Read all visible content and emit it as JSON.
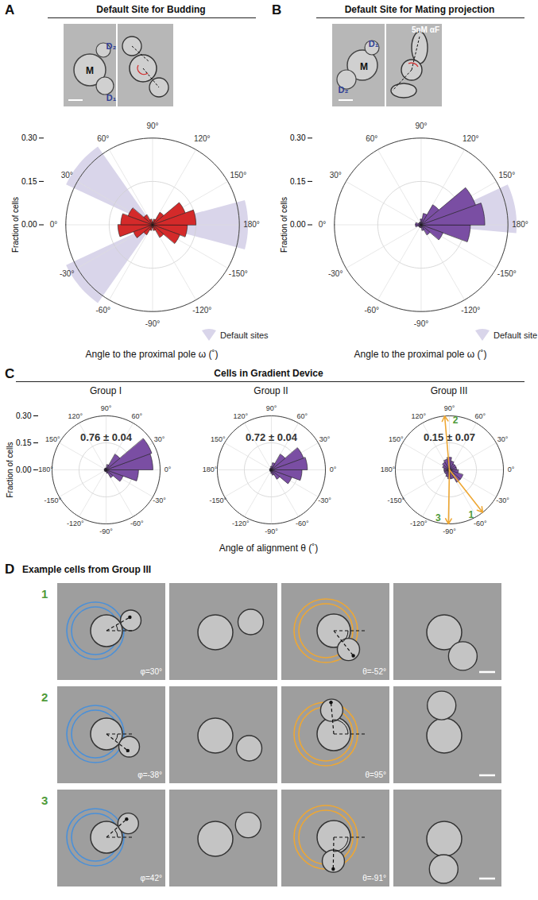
{
  "panels": {
    "A": {
      "letter": "A",
      "title": "Default Site for Budding",
      "image_labels": {
        "mother": "M",
        "daughters": [
          "D₁",
          "D₂"
        ]
      }
    },
    "B": {
      "letter": "B",
      "title": "Default Site for Mating projection",
      "image_labels": {
        "mother": "M",
        "daughters": [
          "D₁",
          "D₂"
        ]
      },
      "treatment": "5nM αF"
    },
    "C": {
      "letter": "C",
      "title": "Cells in Gradient Device",
      "xlabel": "Angle of alignment θ (˚)"
    },
    "D": {
      "letter": "D",
      "title": "Example cells from Group III",
      "examples": [
        {
          "label": "1",
          "phi": {
            "value": 30,
            "label": "φ=30°"
          },
          "theta": {
            "value": -52,
            "label": "θ=-52°"
          }
        },
        {
          "label": "2",
          "phi": {
            "value": -38,
            "label": "φ=-38°"
          },
          "theta": {
            "value": 95,
            "label": "θ=95°"
          }
        },
        {
          "label": "3",
          "phi": {
            "value": 42,
            "label": "φ=42°"
          },
          "theta": {
            "value": -91,
            "label": "θ=-91°"
          }
        }
      ]
    }
  },
  "chart_data": [
    {
      "type": "polar_bar",
      "xlabel": "Angle to the proximal pole ω (˚)",
      "ylabel": "Fraction of cells",
      "orientation": "clockwise",
      "color": "#d42a2a",
      "grid": true,
      "bins": [
        -180,
        -160,
        -140,
        -120,
        -100,
        -80,
        -60,
        -40,
        -20,
        0,
        20,
        40,
        60,
        80,
        100,
        120,
        140,
        160,
        180
      ],
      "values": [
        0.12,
        0.1,
        0.05,
        0.02,
        0.01,
        0.02,
        0.04,
        0.07,
        0.12,
        0.11,
        0.09,
        0.04,
        0.02,
        0.01,
        0.02,
        0.05,
        0.12,
        0.15
      ],
      "xlim": [
        -180,
        180
      ],
      "xticks": [
        {
          "value": 0,
          "label": "0°"
        },
        {
          "value": 30,
          "label": "30°"
        },
        {
          "value": 60,
          "label": "60°"
        },
        {
          "value": 90,
          "label": "90°"
        },
        {
          "value": 120,
          "label": "120°"
        },
        {
          "value": 150,
          "label": "150°"
        },
        {
          "value": 180,
          "label": "180°"
        },
        {
          "value": -150,
          "label": "-150°"
        },
        {
          "value": -120,
          "label": "-120°"
        },
        {
          "value": -90,
          "label": "-90°"
        },
        {
          "value": -60,
          "label": "-60°"
        },
        {
          "value": -30,
          "label": "-30°"
        }
      ],
      "ylim": [
        0,
        0.3
      ],
      "yticks": [
        {
          "value": 0,
          "label": "0.00"
        },
        0.15,
        {
          "value": 0.3,
          "label": "0.30"
        }
      ],
      "default_sites": {
        "label": "Default sites",
        "ranges": [
          [
            25,
            55
          ],
          [
            -55,
            -25
          ],
          [
            165,
            195
          ]
        ],
        "color": "#d9d5ea"
      }
    },
    {
      "type": "polar_bar",
      "xlabel": "Angle to the proximal pole ω (˚)",
      "ylabel": "Fraction of cells",
      "orientation": "clockwise",
      "color": "#7a4ea3",
      "grid": true,
      "bins": [
        -180,
        -160,
        -140,
        -120,
        -100,
        -80,
        -60,
        -40,
        -20,
        0,
        20,
        40,
        60,
        80,
        100,
        120,
        140,
        160,
        180
      ],
      "values": [
        0.17,
        0.08,
        0.04,
        0.02,
        0.01,
        0.01,
        0.01,
        0.01,
        0.02,
        0.02,
        0.01,
        0.01,
        0.01,
        0.02,
        0.04,
        0.08,
        0.2,
        0.22
      ],
      "xlim": [
        -180,
        180
      ],
      "xticks": [
        {
          "value": 0,
          "label": "0°"
        },
        {
          "value": 30,
          "label": "30°"
        },
        {
          "value": 60,
          "label": "60°"
        },
        {
          "value": 90,
          "label": "90°"
        },
        {
          "value": 120,
          "label": "120°"
        },
        {
          "value": 150,
          "label": "150°"
        },
        {
          "value": 180,
          "label": "180°"
        },
        {
          "value": -150,
          "label": "-150°"
        },
        {
          "value": -120,
          "label": "-120°"
        },
        {
          "value": -90,
          "label": "-90°"
        },
        {
          "value": -60,
          "label": "-60°"
        },
        {
          "value": -30,
          "label": "-30°"
        }
      ],
      "ylim": [
        0,
        0.3
      ],
      "yticks": [
        {
          "value": 0,
          "label": "0.00"
        },
        0.15,
        {
          "value": 0.3,
          "label": "0.30"
        }
      ],
      "default_sites": {
        "label": "Default site",
        "ranges": [
          [
            155,
            185
          ]
        ],
        "color": "#d9d5ea"
      }
    },
    {
      "type": "polar_bar",
      "title": "Group I",
      "ylabel": "Fraction of cells",
      "annotation": "0.76 ± 0.04",
      "orientation": "counterclockwise",
      "color": "#7a4ea3",
      "grid": true,
      "bins": [
        -180,
        -160,
        -140,
        -120,
        -100,
        -80,
        -60,
        -40,
        -20,
        0,
        20,
        40,
        60,
        80,
        100,
        120,
        140,
        160,
        180
      ],
      "values": [
        0.01,
        0.01,
        0.01,
        0.01,
        0.01,
        0.02,
        0.05,
        0.1,
        0.18,
        0.26,
        0.27,
        0.1,
        0.03,
        0.01,
        0.01,
        0.01,
        0.01,
        0.01
      ],
      "xlim": [
        -180,
        180
      ],
      "xticks": [
        {
          "value": 0,
          "label": "0°"
        },
        {
          "value": 30,
          "label": "30°"
        },
        {
          "value": 60,
          "label": "60°"
        },
        {
          "value": 90,
          "label": "90°"
        },
        {
          "value": 120,
          "label": "120°"
        },
        {
          "value": 150,
          "label": "150°"
        },
        {
          "value": -180,
          "label": "-180°"
        },
        {
          "value": -150,
          "label": "-150°"
        },
        {
          "value": -120,
          "label": "-120°"
        },
        {
          "value": -90,
          "label": "-90°"
        },
        {
          "value": -60,
          "label": "-60°"
        },
        {
          "value": -30,
          "label": "-30°"
        }
      ],
      "ylim": [
        0,
        0.3
      ],
      "yticks": [
        {
          "value": 0,
          "label": "0.00"
        },
        0.15,
        {
          "value": 0.3,
          "label": "0.30"
        }
      ]
    },
    {
      "type": "polar_bar",
      "title": "Group II",
      "annotation": "0.72 ± 0.04",
      "tick_labels": "x",
      "orientation": "counterclockwise",
      "color": "#7a4ea3",
      "grid": true,
      "bins": [
        -180,
        -160,
        -140,
        -120,
        -100,
        -80,
        -60,
        -40,
        -20,
        0,
        20,
        40,
        60,
        80,
        100,
        120,
        140,
        160,
        180
      ],
      "values": [
        0.01,
        0.01,
        0.01,
        0.01,
        0.02,
        0.03,
        0.06,
        0.12,
        0.17,
        0.2,
        0.19,
        0.1,
        0.04,
        0.02,
        0.01,
        0.01,
        0.01,
        0.01
      ],
      "xlim": [
        -180,
        180
      ],
      "xticks": [
        {
          "value": 0,
          "label": "0°"
        },
        {
          "value": 30,
          "label": "30°"
        },
        {
          "value": 60,
          "label": "60°"
        },
        {
          "value": 90,
          "label": "90°"
        },
        {
          "value": 120,
          "label": "120°"
        },
        {
          "value": 150,
          "label": "150°"
        },
        {
          "value": 180,
          "label": "180°"
        },
        {
          "value": -150,
          "label": "-150°"
        },
        {
          "value": -120,
          "label": "-120°"
        },
        {
          "value": -90,
          "label": "-90°"
        },
        {
          "value": -60,
          "label": "-60°"
        },
        {
          "value": -30,
          "label": "-30°"
        }
      ],
      "ylim": [
        0,
        0.3
      ],
      "yticks": [
        {
          "value": 0,
          "label": "0.00"
        },
        0.15,
        {
          "value": 0.3,
          "label": "0.30"
        }
      ]
    },
    {
      "type": "polar_bar",
      "title": "Group III",
      "annotation": "0.15 ± 0.07",
      "tick_labels": "x",
      "orientation": "counterclockwise",
      "color": "#7a4ea3",
      "grid": true,
      "bins": [
        -180,
        -160,
        -140,
        -120,
        -100,
        -80,
        -60,
        -40,
        -20,
        0,
        20,
        40,
        60,
        80,
        100,
        120,
        140,
        160,
        180
      ],
      "values": [
        0.03,
        0.03,
        0.03,
        0.04,
        0.05,
        0.05,
        0.08,
        0.08,
        0.05,
        0.04,
        0.04,
        0.04,
        0.05,
        0.07,
        0.06,
        0.05,
        0.04,
        0.03
      ],
      "xlim": [
        -180,
        180
      ],
      "xticks": [
        {
          "value": 0,
          "label": "0°"
        },
        {
          "value": 30,
          "label": "30°"
        },
        {
          "value": 60,
          "label": "60°"
        },
        {
          "value": 90,
          "label": "90°"
        },
        {
          "value": 120,
          "label": "120°"
        },
        {
          "value": 150,
          "label": "150°"
        },
        {
          "value": 180,
          "label": "180°"
        },
        {
          "value": -150,
          "label": "-150°"
        },
        {
          "value": -120,
          "label": "-120°"
        },
        {
          "value": -90,
          "label": "-90°"
        },
        {
          "value": -60,
          "label": "-60°"
        },
        {
          "value": -30,
          "label": "-30°"
        }
      ],
      "ylim": [
        0,
        0.3
      ],
      "yticks": [
        {
          "value": 0,
          "label": "0.00"
        },
        0.15,
        {
          "value": 0.3,
          "label": "0.30"
        }
      ],
      "arrows": {
        "color": "#eea733",
        "label_color": "#4f9b3a",
        "items": [
          {
            "angle": -52,
            "label": "1"
          },
          {
            "angle": 95,
            "label": "2"
          },
          {
            "angle": -91,
            "label": "3"
          }
        ]
      }
    }
  ]
}
